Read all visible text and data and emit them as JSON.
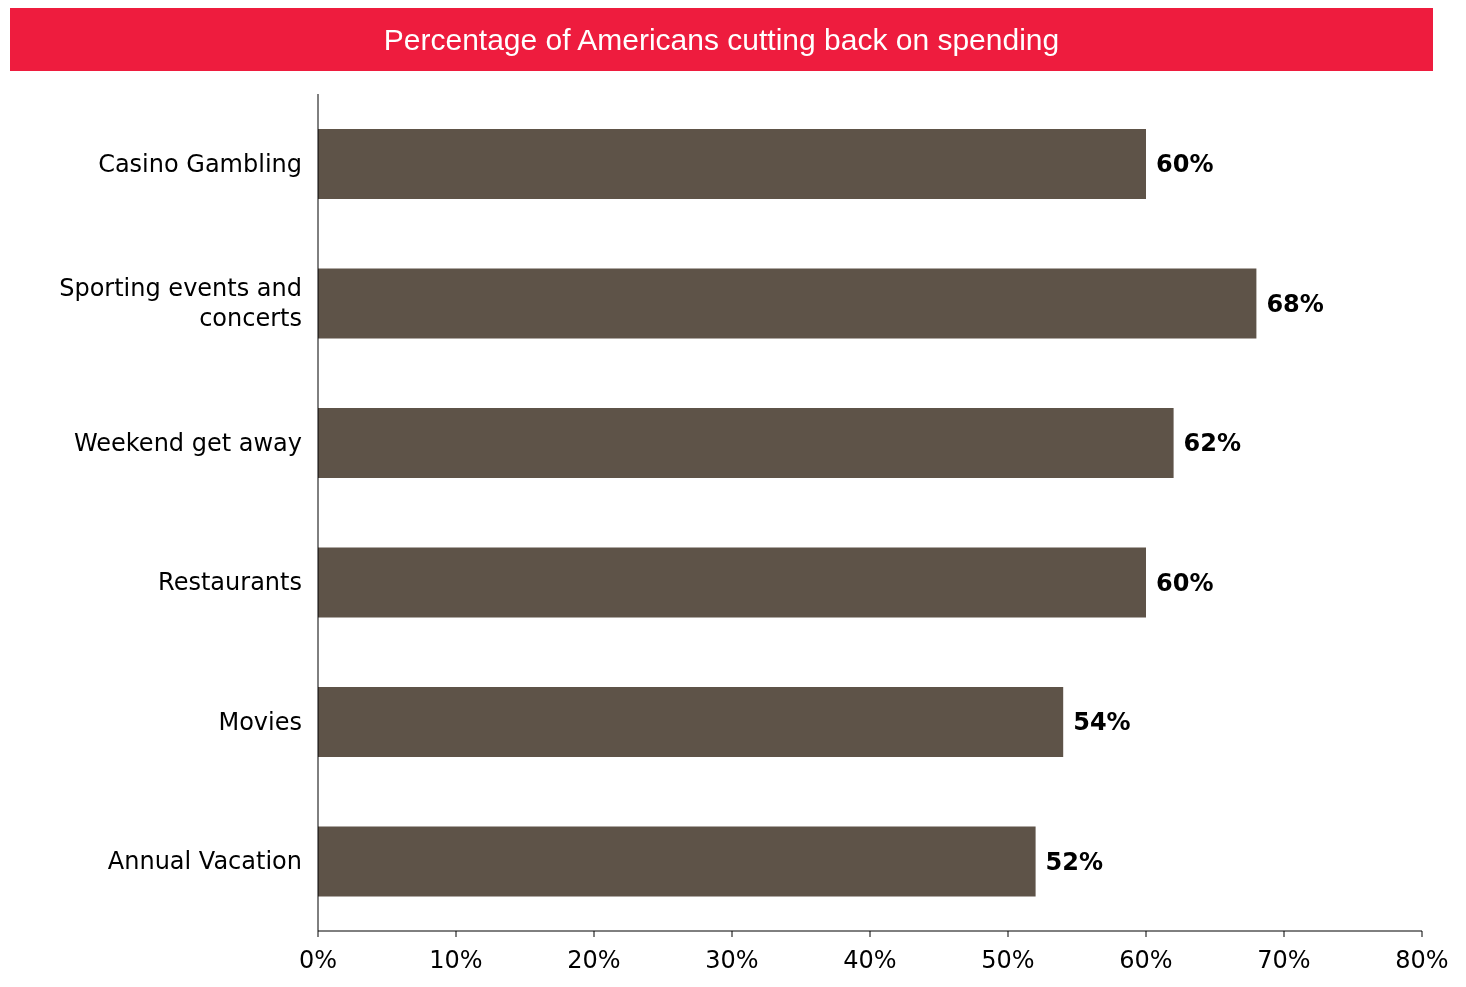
{
  "chart_data": {
    "type": "bar",
    "orientation": "horizontal",
    "title": "Percentage of Americans cutting back on spending",
    "categories": [
      "Casino Gambling",
      "Sporting events and concerts",
      "Weekend get away",
      "Restaurants",
      "Movies",
      "Annual Vacation"
    ],
    "values": [
      60,
      68,
      62,
      60,
      54,
      52
    ],
    "value_labels": [
      "60%",
      "68%",
      "62%",
      "60%",
      "54%",
      "52%"
    ],
    "color": "#5e5348",
    "xlim": [
      0,
      80
    ],
    "xticks": [
      {
        "value": 0,
        "label": "0%"
      },
      {
        "value": 10,
        "label": "10%"
      },
      {
        "value": 20,
        "label": "20%"
      },
      {
        "value": 30,
        "label": "30%"
      },
      {
        "value": 40,
        "label": "40%"
      },
      {
        "value": 50,
        "label": "50%"
      },
      {
        "value": 60,
        "label": "60%"
      },
      {
        "value": 70,
        "label": "70%"
      },
      {
        "value": 80,
        "label": "80%"
      }
    ],
    "grid": false,
    "legend": false
  }
}
